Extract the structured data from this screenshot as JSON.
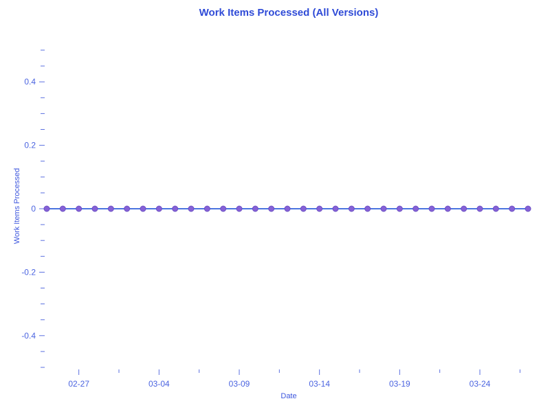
{
  "colors": {
    "background": "#ffffff",
    "title": "#2f4bd7",
    "axis_label": "#3d56de",
    "tick_label": "#4a63e0",
    "tick_mark": "#5a6fe0",
    "line": "#4a74e0",
    "marker_fill": "#8661d6",
    "marker_edge": "#6b4fc4"
  },
  "chart_data": {
    "type": "line",
    "title": "Work Items Processed (All Versions)",
    "xlabel": "Date",
    "ylabel": "Work Items Processed",
    "x": [
      "02-25",
      "02-26",
      "02-27",
      "02-28",
      "03-01",
      "03-02",
      "03-03",
      "03-04",
      "03-05",
      "03-06",
      "03-07",
      "03-08",
      "03-09",
      "03-10",
      "03-11",
      "03-12",
      "03-13",
      "03-14",
      "03-15",
      "03-16",
      "03-17",
      "03-18",
      "03-19",
      "03-20",
      "03-21",
      "03-22",
      "03-23",
      "03-24",
      "03-25",
      "03-26",
      "03-27"
    ],
    "values": [
      0,
      0,
      0,
      0,
      0,
      0,
      0,
      0,
      0,
      0,
      0,
      0,
      0,
      0,
      0,
      0,
      0,
      0,
      0,
      0,
      0,
      0,
      0,
      0,
      0,
      0,
      0,
      0,
      0,
      0,
      0
    ],
    "series_name": "Work Items Processed",
    "x_tick_labels": [
      "02-27",
      "03-04",
      "03-09",
      "03-14",
      "03-19",
      "03-24"
    ],
    "y_tick_labels": [
      "0.4",
      "0.2",
      "0",
      "-0.2",
      "-0.4"
    ],
    "y_major_ticks": [
      0.4,
      0.2,
      0,
      -0.2,
      -0.4
    ],
    "y_minor_step": 0.05,
    "ylim": [
      -0.52,
      0.52
    ],
    "grid": false,
    "legend": false,
    "marker": "circle"
  }
}
